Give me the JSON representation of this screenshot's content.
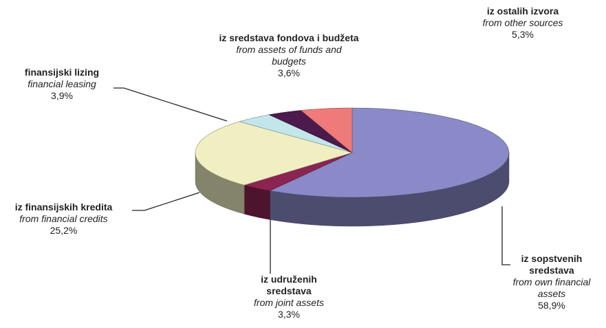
{
  "chart_data": {
    "type": "pie3d",
    "categories": [
      "iz sopstvenih sredstava",
      "iz udruženih sredstava",
      "iz finansijskih kredita",
      "finansijski lizing",
      "iz sredstava fondova i budžeta",
      "iz ostalih izvora"
    ],
    "translations": [
      "from own financial assets",
      "from joint assets",
      "from financial credits",
      "financial leasing",
      "from assets of funds and budgets",
      "from other sources"
    ],
    "values": [
      58.9,
      3.3,
      25.2,
      3.9,
      3.6,
      5.3
    ],
    "value_labels": [
      "58,9%",
      "3,3%",
      "25,2%",
      "3,9%",
      "3,6%",
      "5,3%"
    ],
    "colors": [
      "#8a8ac8",
      "#8c2452",
      "#f0efc2",
      "#c2e6ea",
      "#4c1a4c",
      "#ee7a7a"
    ]
  }
}
